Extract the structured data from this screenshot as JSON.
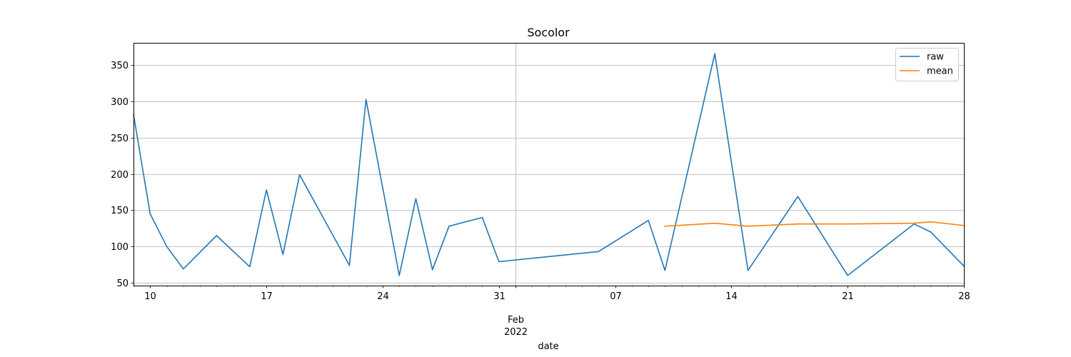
{
  "chart_data": {
    "type": "line",
    "title": "Socolor",
    "xlabel": "date",
    "ylabel": "",
    "x_range": [
      "2022-01-09",
      "2022-02-28"
    ],
    "ylim": [
      46,
      381
    ],
    "grid": true,
    "legend_position": "top-right",
    "y_ticks": [
      50,
      100,
      150,
      200,
      250,
      300,
      350
    ],
    "x_major_ticks": [
      {
        "date": "2022-01-10",
        "label": "10"
      },
      {
        "date": "2022-01-17",
        "label": "17"
      },
      {
        "date": "2022-01-24",
        "label": "24"
      },
      {
        "date": "2022-01-31",
        "label": "31"
      },
      {
        "date": "2022-02-07",
        "label": "07"
      },
      {
        "date": "2022-02-14",
        "label": "14"
      },
      {
        "date": "2022-02-21",
        "label": "21"
      },
      {
        "date": "2022-02-28",
        "label": "28"
      }
    ],
    "x_month_tick": {
      "date": "2022-02-01",
      "label_line1": "Feb",
      "label_line2": "2022"
    },
    "series": [
      {
        "name": "raw",
        "color": "#1f77b4",
        "points": [
          {
            "x": "2022-01-09",
            "y": 282
          },
          {
            "x": "2022-01-10",
            "y": 145
          },
          {
            "x": "2022-01-11",
            "y": 100
          },
          {
            "x": "2022-01-12",
            "y": 69
          },
          {
            "x": "2022-01-14",
            "y": 115
          },
          {
            "x": "2022-01-16",
            "y": 72
          },
          {
            "x": "2022-01-17",
            "y": 178
          },
          {
            "x": "2022-01-18",
            "y": 89
          },
          {
            "x": "2022-01-19",
            "y": 199
          },
          {
            "x": "2022-01-22",
            "y": 74
          },
          {
            "x": "2022-01-23",
            "y": 303
          },
          {
            "x": "2022-01-25",
            "y": 60
          },
          {
            "x": "2022-01-26",
            "y": 166
          },
          {
            "x": "2022-01-27",
            "y": 68
          },
          {
            "x": "2022-01-28",
            "y": 128
          },
          {
            "x": "2022-01-30",
            "y": 140
          },
          {
            "x": "2022-01-31",
            "y": 79
          },
          {
            "x": "2022-02-06",
            "y": 93
          },
          {
            "x": "2022-02-09",
            "y": 136
          },
          {
            "x": "2022-02-10",
            "y": 67
          },
          {
            "x": "2022-02-13",
            "y": 366
          },
          {
            "x": "2022-02-15",
            "y": 67
          },
          {
            "x": "2022-02-18",
            "y": 169
          },
          {
            "x": "2022-02-21",
            "y": 60
          },
          {
            "x": "2022-02-25",
            "y": 131
          },
          {
            "x": "2022-02-26",
            "y": 120
          },
          {
            "x": "2022-02-28",
            "y": 73
          }
        ]
      },
      {
        "name": "mean",
        "color": "#ff7f0e",
        "points": [
          {
            "x": "2022-02-10",
            "y": 128
          },
          {
            "x": "2022-02-13",
            "y": 132
          },
          {
            "x": "2022-02-15",
            "y": 128
          },
          {
            "x": "2022-02-18",
            "y": 131
          },
          {
            "x": "2022-02-21",
            "y": 131
          },
          {
            "x": "2022-02-25",
            "y": 132
          },
          {
            "x": "2022-02-26",
            "y": 134
          },
          {
            "x": "2022-02-28",
            "y": 129
          }
        ]
      }
    ]
  }
}
